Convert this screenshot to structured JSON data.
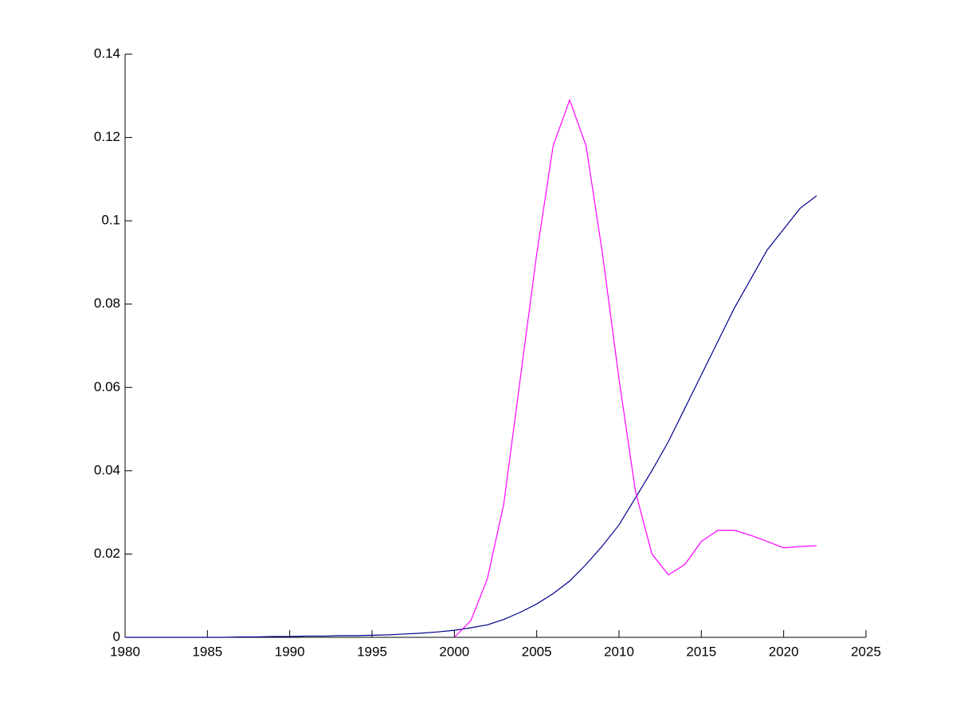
{
  "chart_data": {
    "type": "line",
    "x": [
      1980,
      1981,
      1982,
      1983,
      1984,
      1985,
      1986,
      1987,
      1988,
      1989,
      1990,
      1991,
      1992,
      1993,
      1994,
      1995,
      1996,
      1997,
      1998,
      1999,
      2000,
      2001,
      2002,
      2003,
      2004,
      2005,
      2006,
      2007,
      2008,
      2009,
      2010,
      2011,
      2012,
      2013,
      2014,
      2015,
      2016,
      2017,
      2018,
      2019,
      2020,
      2021,
      2022
    ],
    "series": [
      {
        "color": "#00008b",
        "values": [
          0,
          0,
          0,
          0,
          0,
          0,
          0,
          0.0001,
          0.0001,
          0.0002,
          0.0002,
          0.0003,
          0.0003,
          0.0004,
          0.0004,
          0.0005,
          0.0006,
          0.0008,
          0.001,
          0.0013,
          0.0017,
          0.0023,
          0.003,
          0.0043,
          0.006,
          0.008,
          0.0105,
          0.0135,
          0.0175,
          0.022,
          0.027,
          0.0335,
          0.04,
          0.047,
          0.055,
          0.063,
          0.071,
          0.079,
          0.086,
          0.093,
          0.098,
          0.103,
          0.106
        ]
      },
      {
        "color": "#ff00ff",
        "values": [
          null,
          null,
          null,
          null,
          null,
          null,
          null,
          null,
          null,
          null,
          null,
          null,
          null,
          null,
          null,
          null,
          null,
          null,
          null,
          null,
          0,
          0.004,
          0.014,
          0.032,
          0.062,
          0.092,
          0.118,
          0.129,
          0.118,
          0.092,
          0.062,
          0.035,
          0.02,
          0.015,
          0.0175,
          0.023,
          0.0257,
          0.0257,
          0.0245,
          0.023,
          0.0215,
          0.0218,
          0.022
        ]
      }
    ],
    "xlim": [
      1980,
      2025
    ],
    "xticks": [
      1980,
      1985,
      1990,
      1995,
      2000,
      2005,
      2010,
      2015,
      2020,
      2025
    ],
    "ylim": [
      0,
      0.14
    ],
    "yticks": [
      0,
      0.02,
      0.04,
      0.06,
      0.08,
      0.1,
      0.12,
      0.14
    ]
  }
}
